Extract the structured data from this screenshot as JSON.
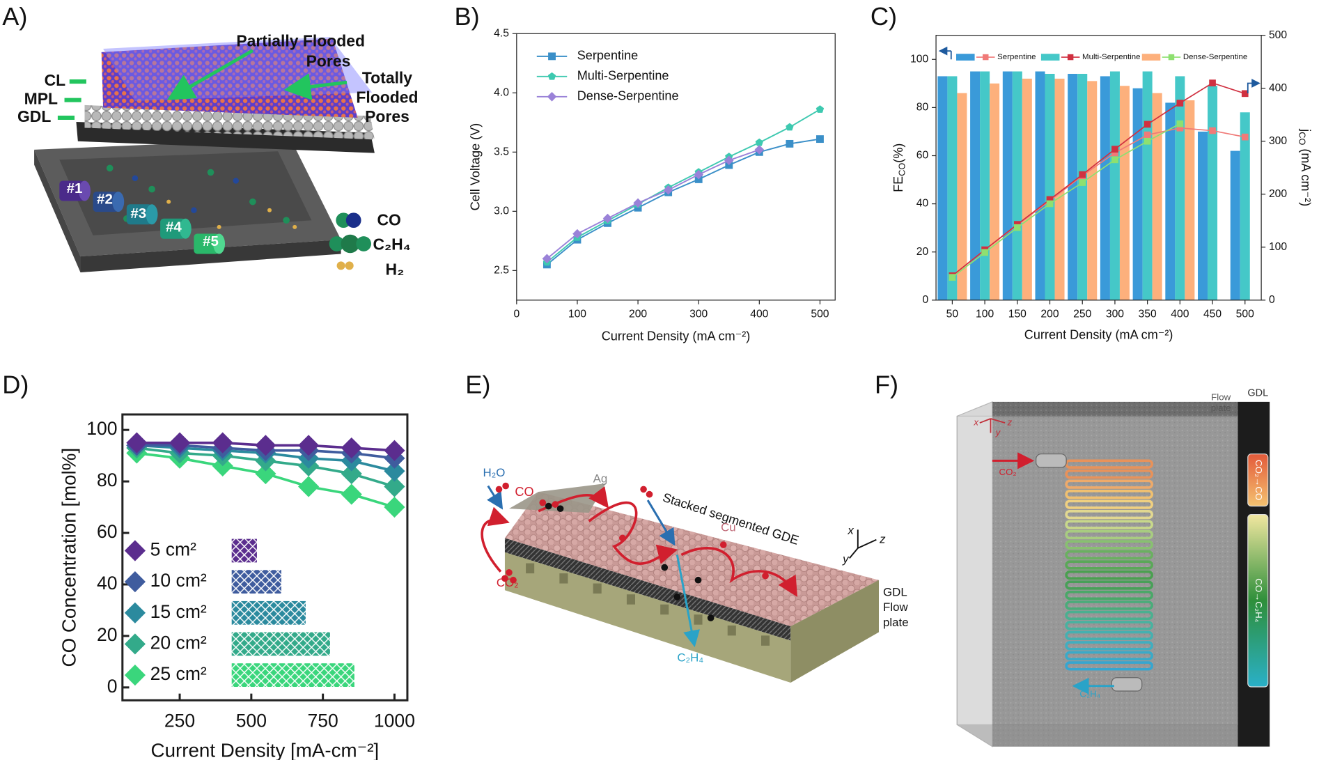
{
  "panel_labels": [
    "A)",
    "B)",
    "C)",
    "D)",
    "E)",
    "F)"
  ],
  "chart_data": [
    {
      "type": "line",
      "x": [
        50,
        100,
        150,
        200,
        250,
        300,
        350,
        400,
        450,
        500
      ],
      "xlim": [
        0,
        525
      ],
      "xticks": [
        0,
        100,
        200,
        300,
        400,
        500
      ],
      "ylim": [
        2.25,
        4.5
      ],
      "yticks": [
        2.5,
        {
          "value": 3,
          "label": "3.0"
        },
        3.5,
        {
          "value": 4,
          "label": "4.0"
        },
        4.5
      ],
      "xlabel": "Current Density (mA cm⁻²)",
      "ylabel": "Cell Voltage (V)",
      "legend": "upper left",
      "series": [
        {
          "name": "Serpentine",
          "color": "#3a8fc8",
          "marker": "square",
          "values": [
            2.55,
            2.76,
            2.9,
            3.03,
            3.16,
            3.27,
            3.39,
            3.5,
            3.57,
            3.61
          ]
        },
        {
          "name": "Multi-Serpentine",
          "color": "#3ec9b0",
          "marker": "pentagon",
          "values": [
            2.57,
            2.78,
            2.92,
            3.06,
            3.2,
            3.33,
            3.46,
            3.58,
            3.71,
            3.86
          ]
        },
        {
          "name": "Dense-Serpentine",
          "color": "#9a82d8",
          "marker": "diamond",
          "values": [
            2.6,
            2.81,
            2.94,
            3.07,
            3.18,
            3.31,
            3.43,
            3.52,
            null,
            null
          ]
        }
      ]
    },
    {
      "type": "bar-line",
      "categories": [
        "50",
        "100",
        "150",
        "200",
        "250",
        "300",
        "350",
        "400",
        "450",
        "500"
      ],
      "ylim": [
        0,
        110
      ],
      "yticks": [
        0,
        20,
        40,
        60,
        80,
        100
      ],
      "y2lim": [
        0,
        500
      ],
      "y2ticks": [
        0,
        100,
        200,
        300,
        400,
        500
      ],
      "xlabel": "Current Density (mA cm⁻²)",
      "ylabel": {
        "main": "FE",
        "sub": "CO",
        "tail": "(%)"
      },
      "y2label": {
        "main": "j",
        "sub": "CO",
        "tail": " (mA cm⁻²)"
      },
      "legend": "top",
      "series": [
        {
          "name": "Serpentine",
          "color": "#3a9ad9",
          "values": [
            93,
            95,
            95,
            95,
            94,
            93,
            88,
            82,
            70,
            62
          ],
          "line": {
            "color": "#f07a78",
            "axis": "y2",
            "values": [
              46,
              95,
              142,
              188,
              235,
              278,
              312,
              325,
              320,
              308
            ]
          }
        },
        {
          "name": "Multi-Serpentine",
          "color": "#45c8c8",
          "values": [
            93,
            95,
            95,
            94,
            94,
            95,
            95,
            93,
            89,
            78
          ],
          "line": {
            "color": "#d03040",
            "axis": "y2",
            "values": [
              46,
              95,
              143,
              190,
              237,
              285,
              332,
              372,
              410,
              390
            ]
          }
        },
        {
          "name": "Dense-Serpentine",
          "color": "#fdb07c",
          "values": [
            86,
            90,
            92,
            92,
            91,
            89,
            86,
            83,
            null,
            null
          ],
          "line": {
            "color": "#8ee070",
            "axis": "y2",
            "values": [
              43,
              90,
              137,
              182,
              222,
              265,
              300,
              333,
              null,
              null
            ]
          }
        }
      ]
    },
    {
      "type": "line",
      "x": [
        100,
        250,
        400,
        550,
        700,
        850,
        1000
      ],
      "xlim": [
        50,
        1045
      ],
      "xticks": [
        250,
        500,
        750,
        1000
      ],
      "ylim": [
        -5,
        106
      ],
      "yticks": [
        0,
        20,
        40,
        60,
        80,
        100
      ],
      "xlabel": "Current Density  [mA-cm⁻²]",
      "ylabel": "CO Concentration [mol%]",
      "legend": "lower left",
      "series": [
        {
          "name": "5 cm²",
          "color": "#5b2d8e",
          "marker": "diamond",
          "values": [
            95,
            95,
            95,
            94,
            94,
            93,
            92
          ]
        },
        {
          "name": "10 cm²",
          "color": "#3f5c9e",
          "marker": "diamond",
          "values": [
            94,
            94,
            93,
            92,
            92,
            91,
            89
          ]
        },
        {
          "name": "15 cm²",
          "color": "#2b8a9e",
          "marker": "diamond",
          "values": [
            94,
            93,
            92,
            91,
            89,
            88,
            84
          ]
        },
        {
          "name": "20 cm²",
          "color": "#33aa8a",
          "marker": "diamond",
          "values": [
            93,
            91,
            90,
            88,
            86,
            83,
            78
          ]
        },
        {
          "name": "25 cm²",
          "color": "#3ad67c",
          "marker": "diamond",
          "values": [
            91,
            89,
            86,
            83,
            78,
            75,
            70
          ]
        }
      ]
    }
  ],
  "panel_a": {
    "layers": [
      "CL",
      "MPL",
      "GDL"
    ],
    "partially_flooded": [
      "Partially Flooded",
      "Pores"
    ],
    "totally_flooded": [
      "Totally",
      "Flooded",
      "Pores"
    ],
    "outlets": [
      "#1",
      "#2",
      "#3",
      "#4",
      "#5"
    ],
    "products": [
      "CO",
      "C₂H₄",
      "H₂"
    ]
  },
  "panel_e": {
    "h2o": "H₂O",
    "co": "CO",
    "ag": "Ag",
    "co2": "CO₂",
    "gde": "Stacked segmented GDE",
    "cu": "Cu",
    "c2h4": "C₂H₄",
    "gdl": "GDL",
    "flow_plate": [
      "Flow",
      "plate"
    ],
    "axes": [
      "x",
      "z",
      "y"
    ]
  },
  "panel_f": {
    "flow_plate": [
      "Flow",
      "plate"
    ],
    "gdl": "GDL",
    "co2": "CO₂",
    "c2h4": "C₂H₄",
    "zone1": "CO₂→CO",
    "zone2": "CO→C₂H₄",
    "axes": [
      "x",
      "y",
      "z"
    ]
  }
}
